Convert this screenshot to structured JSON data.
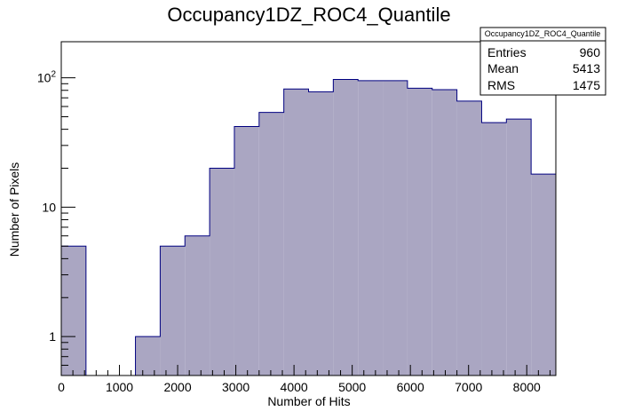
{
  "chart_data": {
    "type": "bar",
    "title": "Occupancy1DZ_ROC4_Quantile",
    "xlabel": "Number of Hits",
    "ylabel": "Number of Pixels",
    "xlim": [
      0,
      8500
    ],
    "ylim": [
      0.5,
      190
    ],
    "y_scale": "log",
    "grid": false,
    "bar_fill": "#aaa6c2",
    "bar_line": "#000080",
    "x_ticks": [
      0,
      1000,
      2000,
      3000,
      4000,
      5000,
      6000,
      7000,
      8000
    ],
    "y_ticks": [
      {
        "value": 1,
        "base": "1",
        "exp": ""
      },
      {
        "value": 10,
        "base": "10",
        "exp": ""
      },
      {
        "value": 100,
        "base": "10",
        "exp": "2"
      }
    ],
    "bins": [
      {
        "x0": 0,
        "x1": 425,
        "value": 5
      },
      {
        "x0": 425,
        "x1": 850,
        "value": 0
      },
      {
        "x0": 850,
        "x1": 1275,
        "value": 0
      },
      {
        "x0": 1275,
        "x1": 1700,
        "value": 1
      },
      {
        "x0": 1700,
        "x1": 2125,
        "value": 5
      },
      {
        "x0": 2125,
        "x1": 2550,
        "value": 6
      },
      {
        "x0": 2550,
        "x1": 2975,
        "value": 20
      },
      {
        "x0": 2975,
        "x1": 3400,
        "value": 42
      },
      {
        "x0": 3400,
        "x1": 3825,
        "value": 54
      },
      {
        "x0": 3825,
        "x1": 4250,
        "value": 82
      },
      {
        "x0": 4250,
        "x1": 4675,
        "value": 78
      },
      {
        "x0": 4675,
        "x1": 5100,
        "value": 97
      },
      {
        "x0": 5100,
        "x1": 5525,
        "value": 95
      },
      {
        "x0": 5525,
        "x1": 5950,
        "value": 95
      },
      {
        "x0": 5950,
        "x1": 6375,
        "value": 83
      },
      {
        "x0": 6375,
        "x1": 6800,
        "value": 81
      },
      {
        "x0": 6800,
        "x1": 7225,
        "value": 66
      },
      {
        "x0": 7225,
        "x1": 7650,
        "value": 45
      },
      {
        "x0": 7650,
        "x1": 8075,
        "value": 48
      },
      {
        "x0": 8075,
        "x1": 8500,
        "value": 18
      }
    ],
    "stats": {
      "title": "Occupancy1DZ_ROC4_Quantile",
      "rows": [
        {
          "label": "Entries",
          "value": "960"
        },
        {
          "label": "Mean",
          "value": "5413"
        },
        {
          "label": "RMS",
          "value": "1475"
        }
      ]
    }
  }
}
